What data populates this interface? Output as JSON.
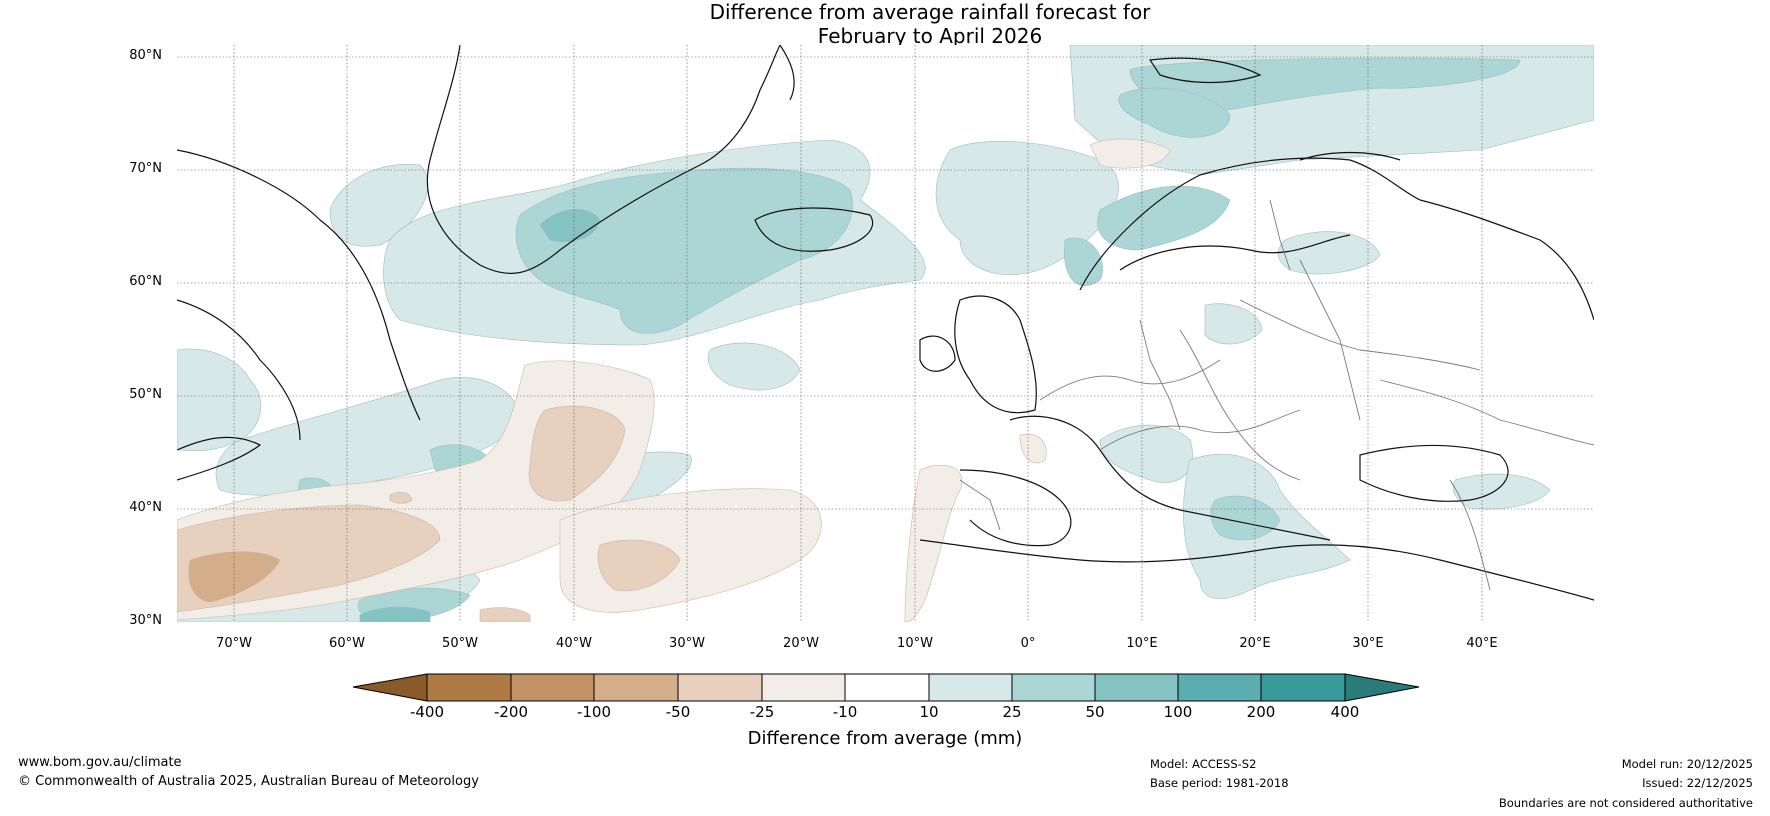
{
  "title": {
    "line1": "Difference from average rainfall forecast for",
    "line2": "February to April 2026"
  },
  "latitude_labels": [
    "80°N",
    "70°N",
    "60°N",
    "50°N",
    "40°N",
    "30°N"
  ],
  "longitude_labels": [
    "70°W",
    "60°W",
    "50°W",
    "40°W",
    "30°W",
    "20°W",
    "10°W",
    "0°",
    "10°E",
    "20°E",
    "30°E",
    "40°E"
  ],
  "colorbar": {
    "title": "Difference from average (mm)",
    "ticks": [
      "-400",
      "-200",
      "-100",
      "-50",
      "-25",
      "-10",
      "10",
      "25",
      "50",
      "100",
      "200",
      "400"
    ],
    "colors": [
      "#8b5a2b",
      "#b07a45",
      "#c29265",
      "#d4ae8b",
      "#e7d0bd",
      "#f3ede7",
      "#ffffff",
      "#d6e8e7",
      "#acd6d5",
      "#84c3c1",
      "#5cadaf",
      "#3a9a9a",
      "#2a7c7b"
    ]
  },
  "footer": {
    "website": "www.bom.gov.au/climate",
    "copyright": "© Commonwealth of Australia 2025, Australian Bureau of Meteorology",
    "model": "Model: ACCESS-S2",
    "base_period": "Base period: 1981-2018",
    "model_run": "Model run: 20/12/2025",
    "issued": "Issued: 22/12/2025",
    "disclaimer": "Boundaries are not considered authoritative"
  }
}
